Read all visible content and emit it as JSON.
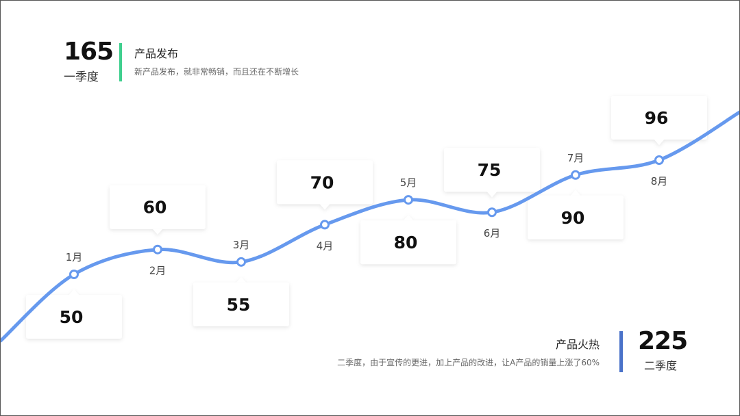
{
  "q1": {
    "total": "165",
    "season": "一季度",
    "title": "产品发布",
    "desc": "新产品发布，就非常畅销，而且还在不断增长"
  },
  "q2": {
    "total": "225",
    "season": "二季度",
    "title": "产品火热",
    "desc": "二季度，由于宣传的更进，加上产品的改进，让A产品的销量上涨了60%"
  },
  "colors": {
    "line": "#6699ee",
    "q1_accent": "#3fcf8e",
    "q2_accent": "#4a72c9"
  },
  "chart_data": {
    "type": "line",
    "categories": [
      "1月",
      "2月",
      "3月",
      "4月",
      "5月",
      "6月",
      "7月",
      "8月"
    ],
    "values": [
      50,
      60,
      55,
      70,
      80,
      75,
      90,
      96
    ],
    "smooth": true,
    "grid": false,
    "legend": "none"
  }
}
